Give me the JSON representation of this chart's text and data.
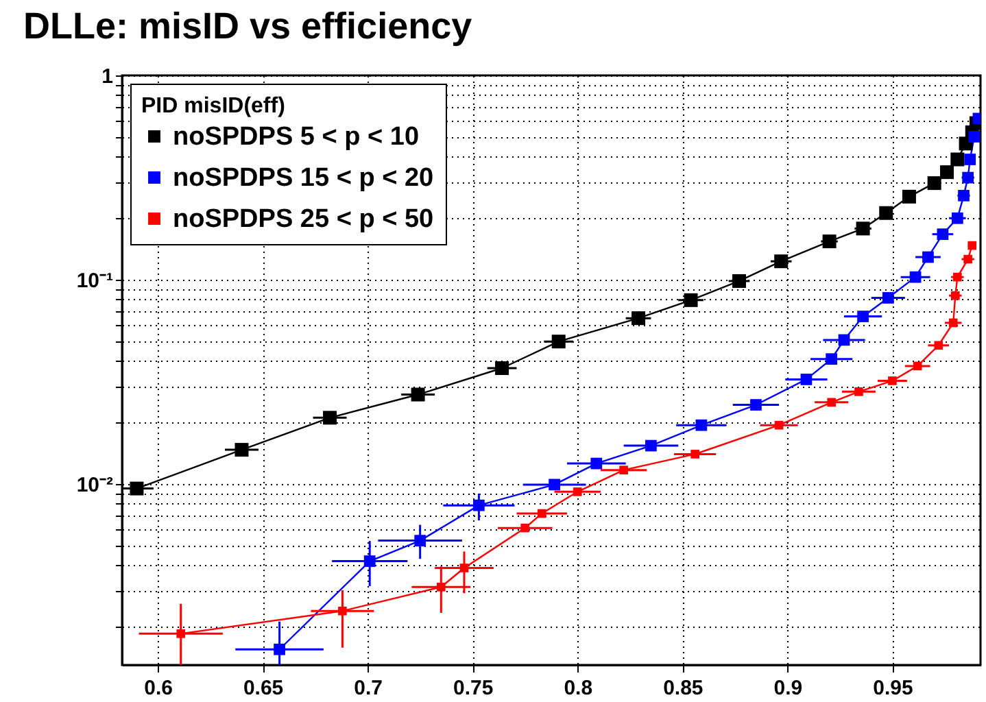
{
  "chart_data": {
    "type": "line",
    "title": "DLLe: misID vs efficiency",
    "legend_title": "PID misID(eff)",
    "legend": "top left",
    "grid": true,
    "log": "y",
    "marker": "square",
    "line_style": "solid",
    "xlim": [
      0.583,
      0.992
    ],
    "xticks": [
      0.6,
      0.65,
      0.7,
      0.75,
      0.8,
      0.85,
      0.9,
      0.95
    ],
    "ylim": [
      0.0013,
      1
    ],
    "yticks": [
      {
        "value": 0.002,
        "label": null
      },
      {
        "value": 0.003,
        "label": null
      },
      {
        "value": 0.004,
        "label": null
      },
      {
        "value": 0.005,
        "label": null
      },
      {
        "value": 0.006,
        "label": null
      },
      {
        "value": 0.007,
        "label": null
      },
      {
        "value": 0.008,
        "label": null
      },
      {
        "value": 0.009,
        "label": null
      },
      {
        "value": 0.01,
        "label": "10⁻²"
      },
      {
        "value": 0.02,
        "label": null
      },
      {
        "value": 0.03,
        "label": null
      },
      {
        "value": 0.04,
        "label": null
      },
      {
        "value": 0.05,
        "label": null
      },
      {
        "value": 0.06,
        "label": null
      },
      {
        "value": 0.07,
        "label": null
      },
      {
        "value": 0.08,
        "label": null
      },
      {
        "value": 0.09,
        "label": null
      },
      {
        "value": 0.1,
        "label": "10⁻¹"
      },
      {
        "value": 0.2,
        "label": null
      },
      {
        "value": 0.3,
        "label": null
      },
      {
        "value": 0.4,
        "label": null
      },
      {
        "value": 0.5,
        "label": null
      },
      {
        "value": 0.6,
        "label": null
      },
      {
        "value": 0.7,
        "label": null
      },
      {
        "value": 0.8,
        "label": null
      },
      {
        "value": 0.9,
        "label": null
      },
      {
        "value": 1,
        "label": "1"
      }
    ],
    "series": [
      {
        "name": "noSPDPS 5 < p < 10",
        "color": "#000000",
        "x": [
          0.59,
          0.64,
          0.682,
          0.724,
          0.764,
          0.791,
          0.829,
          0.854,
          0.877,
          0.897,
          0.92,
          0.936,
          0.947,
          0.958,
          0.97,
          0.976,
          0.981,
          0.985,
          0.988,
          0.99
        ],
        "values": [
          0.0095,
          0.0147,
          0.0211,
          0.0274,
          0.0369,
          0.0498,
          0.0648,
          0.0794,
          0.0985,
          0.123,
          0.154,
          0.178,
          0.212,
          0.255,
          0.297,
          0.336,
          0.388,
          0.464,
          0.527,
          0.584
        ],
        "xerrors": [
          0.008,
          0.008,
          0.008,
          0.008,
          0.007,
          0.007,
          0.006,
          0.006,
          0.005,
          0.005,
          0.004,
          0.004,
          0.003,
          0.003,
          0.003,
          0.002,
          0.002,
          0.002,
          0.002,
          0.002
        ]
      },
      {
        "name": "noSPDPS 15 < p < 20",
        "color": "#0000ff",
        "x": [
          0.658,
          0.701,
          0.725,
          0.753,
          0.789,
          0.809,
          0.835,
          0.859,
          0.885,
          0.909,
          0.921,
          0.927,
          0.936,
          0.948,
          0.961,
          0.967,
          0.974,
          0.981,
          0.984,
          0.986,
          0.987,
          0.989,
          0.991
        ],
        "values": [
          0.00155,
          0.00419,
          0.00528,
          0.00786,
          0.00993,
          0.0126,
          0.0154,
          0.0194,
          0.0244,
          0.0325,
          0.0409,
          0.0507,
          0.0661,
          0.0815,
          0.103,
          0.129,
          0.167,
          0.2,
          0.258,
          0.316,
          0.388,
          0.501,
          0.615
        ],
        "xerrors": [
          0.021,
          0.018,
          0.02,
          0.017,
          0.015,
          0.014,
          0.013,
          0.012,
          0.011,
          0.01,
          0.01,
          0.01,
          0.009,
          0.008,
          0.007,
          0.006,
          0.005,
          0.004,
          0.003,
          0.003,
          0.002,
          0.002,
          0.002
        ],
        "errors": [
          [
            0.0013,
            0.00212
          ],
          [
            0.00316,
            0.00526
          ],
          [
            0.0043,
            0.00631
          ],
          [
            0.00663,
            0.00898
          ],
          null,
          null,
          null,
          null,
          null,
          null,
          null,
          null,
          null,
          null,
          null,
          null,
          null,
          null,
          null,
          null,
          null,
          null,
          null
        ]
      },
      {
        "name": "noSPDPS 25 < p < 50",
        "color": "#ff0000",
        "x": [
          0.611,
          0.688,
          0.735,
          0.746,
          0.775,
          0.783,
          0.8,
          0.822,
          0.856,
          0.896,
          0.921,
          0.934,
          0.95,
          0.962,
          0.972,
          0.979,
          0.98,
          0.981,
          0.986,
          0.988
        ],
        "values": [
          0.00185,
          0.00239,
          0.00313,
          0.00388,
          0.00609,
          0.00717,
          0.00916,
          0.0117,
          0.014,
          0.0194,
          0.0251,
          0.0283,
          0.032,
          0.0378,
          0.0477,
          0.0615,
          0.0836,
          0.103,
          0.126,
          0.147
        ],
        "xerrors": [
          0.02,
          0.015,
          0.014,
          0.014,
          0.013,
          0.012,
          0.011,
          0.011,
          0.01,
          0.009,
          0.008,
          0.008,
          0.007,
          0.006,
          0.005,
          0.004,
          0.003,
          0.003,
          0.003,
          0.002
        ],
        "errors": [
          [
            0.0013,
            0.00259
          ],
          [
            0.00158,
            0.00302
          ],
          [
            0.00234,
            0.00395
          ],
          [
            0.00292,
            0.00467
          ],
          null,
          null,
          null,
          null,
          null,
          null,
          null,
          null,
          null,
          null,
          null,
          null,
          null,
          null,
          null,
          null
        ]
      }
    ]
  }
}
